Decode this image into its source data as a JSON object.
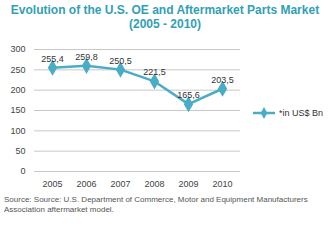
{
  "chart_data": {
    "type": "line",
    "title": "Evolution of the U.S. OE and Aftermarket Parts Market (2005 - 2010)",
    "categories": [
      "2005",
      "2006",
      "2007",
      "2008",
      "2009",
      "2010"
    ],
    "series": [
      {
        "name": "*in US$ Bn",
        "color": "#4bacc6",
        "marker": "diamond",
        "line_style": "solid",
        "values": [
          255.4,
          259.8,
          250.5,
          221.5,
          165.6,
          203.5
        ],
        "value_labels": [
          "255,4",
          "259,8",
          "250,5",
          "221,5",
          "165,6",
          "203,5"
        ]
      }
    ],
    "ylim": [
      0,
      300
    ],
    "yticks": [
      0,
      50,
      100,
      150,
      200,
      250,
      300
    ],
    "grid": true,
    "data_labels": true,
    "legend": "right",
    "annotations": [
      "Source: Source: U.S. Department of Commerce, Motor and Equipment Manufacturers Association aftermarket model."
    ]
  }
}
